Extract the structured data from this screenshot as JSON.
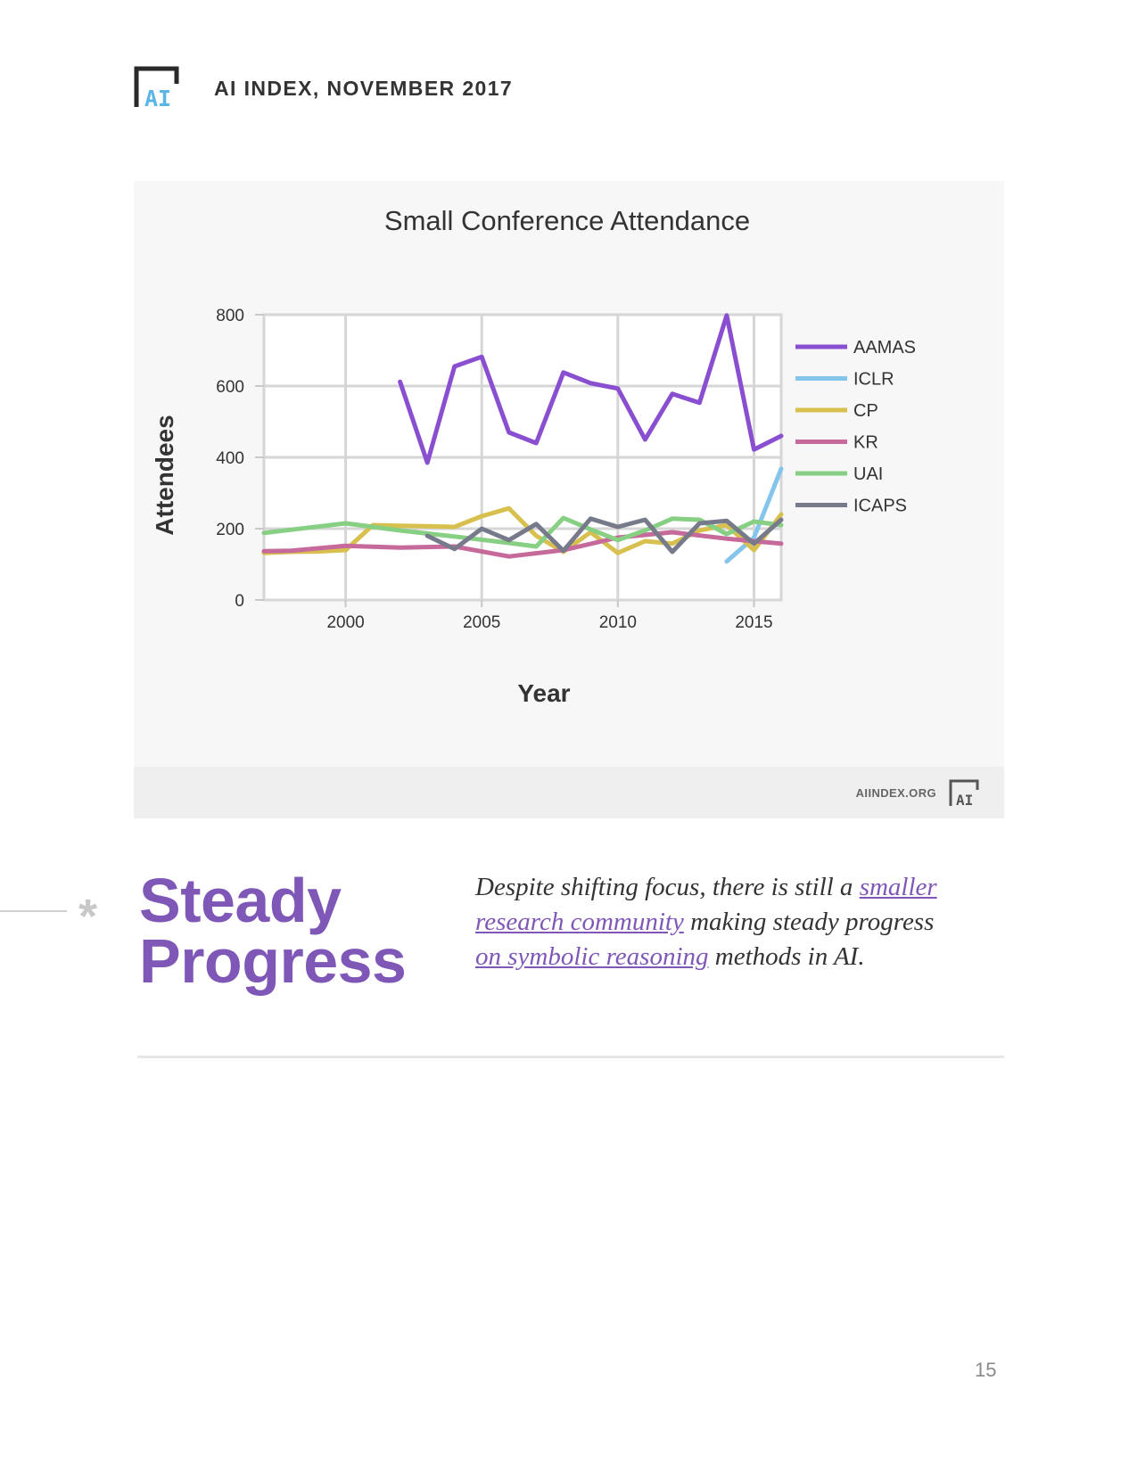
{
  "header": {
    "title": "AI INDEX, NOVEMBER 2017",
    "logo_text": "AI"
  },
  "chart_footer": {
    "site": "AIINDEX.ORG",
    "logo_text": "AI"
  },
  "chart_data": {
    "type": "line",
    "title": "Small Conference Attendance",
    "xlabel": "Year",
    "ylabel": "Attendees",
    "xlim": [
      1997,
      2016
    ],
    "ylim": [
      0,
      800
    ],
    "xticks": [
      2000,
      2005,
      2010,
      2015
    ],
    "yticks": [
      0,
      200,
      400,
      600,
      800
    ],
    "grid": true,
    "legend_position": "right",
    "series": [
      {
        "name": "AAMAS",
        "color": "#8a4fd1",
        "x": [
          2002,
          2003,
          2004,
          2005,
          2006,
          2007,
          2008,
          2009,
          2010,
          2011,
          2012,
          2013,
          2014,
          2015,
          2016
        ],
        "y": [
          612,
          385,
          655,
          682,
          470,
          440,
          638,
          608,
          593,
          450,
          578,
          553,
          798,
          422,
          460
        ]
      },
      {
        "name": "ICLR",
        "color": "#85c5ec",
        "x": [
          2014,
          2015,
          2016
        ],
        "y": [
          108,
          175,
          368
        ]
      },
      {
        "name": "CP",
        "color": "#d8c04f",
        "x": [
          1997,
          1998,
          1999,
          2000,
          2001,
          2002,
          2003,
          2004,
          2005,
          2006,
          2007,
          2008,
          2009,
          2010,
          2011,
          2012,
          2013,
          2014,
          2015,
          2016
        ],
        "y": [
          132,
          135,
          136,
          140,
          210,
          208,
          207,
          205,
          235,
          257,
          180,
          135,
          190,
          132,
          165,
          158,
          195,
          210,
          140,
          240
        ]
      },
      {
        "name": "KR",
        "color": "#c66a9b",
        "x": [
          1997,
          1998,
          2000,
          2002,
          2004,
          2006,
          2008,
          2010,
          2012,
          2014,
          2016
        ],
        "y": [
          137,
          138,
          152,
          147,
          150,
          122,
          140,
          175,
          190,
          172,
          158
        ]
      },
      {
        "name": "UAI",
        "color": "#87cf82",
        "x": [
          1997,
          2000,
          2002,
          2004,
          2006,
          2007,
          2008,
          2009,
          2010,
          2011,
          2012,
          2013,
          2014,
          2015,
          2016
        ],
        "y": [
          188,
          215,
          195,
          178,
          160,
          150,
          230,
          198,
          168,
          195,
          228,
          225,
          185,
          220,
          210
        ]
      },
      {
        "name": "ICAPS",
        "color": "#777a8a",
        "x": [
          2003,
          2004,
          2005,
          2006,
          2007,
          2008,
          2009,
          2010,
          2011,
          2012,
          2013,
          2014,
          2015,
          2016
        ],
        "y": [
          180,
          143,
          200,
          168,
          213,
          138,
          228,
          205,
          225,
          135,
          215,
          222,
          158,
          225
        ]
      }
    ]
  },
  "section": {
    "marker": "*",
    "title_line1": "Steady",
    "title_line2": "Progress",
    "body_part1": "Despite shifting focus, there is still a ",
    "link1": "smaller research community",
    "body_part2": " making steady progress ",
    "link2": "on symbolic reasoning",
    "body_part3": " methods in AI."
  },
  "page_number": "15"
}
